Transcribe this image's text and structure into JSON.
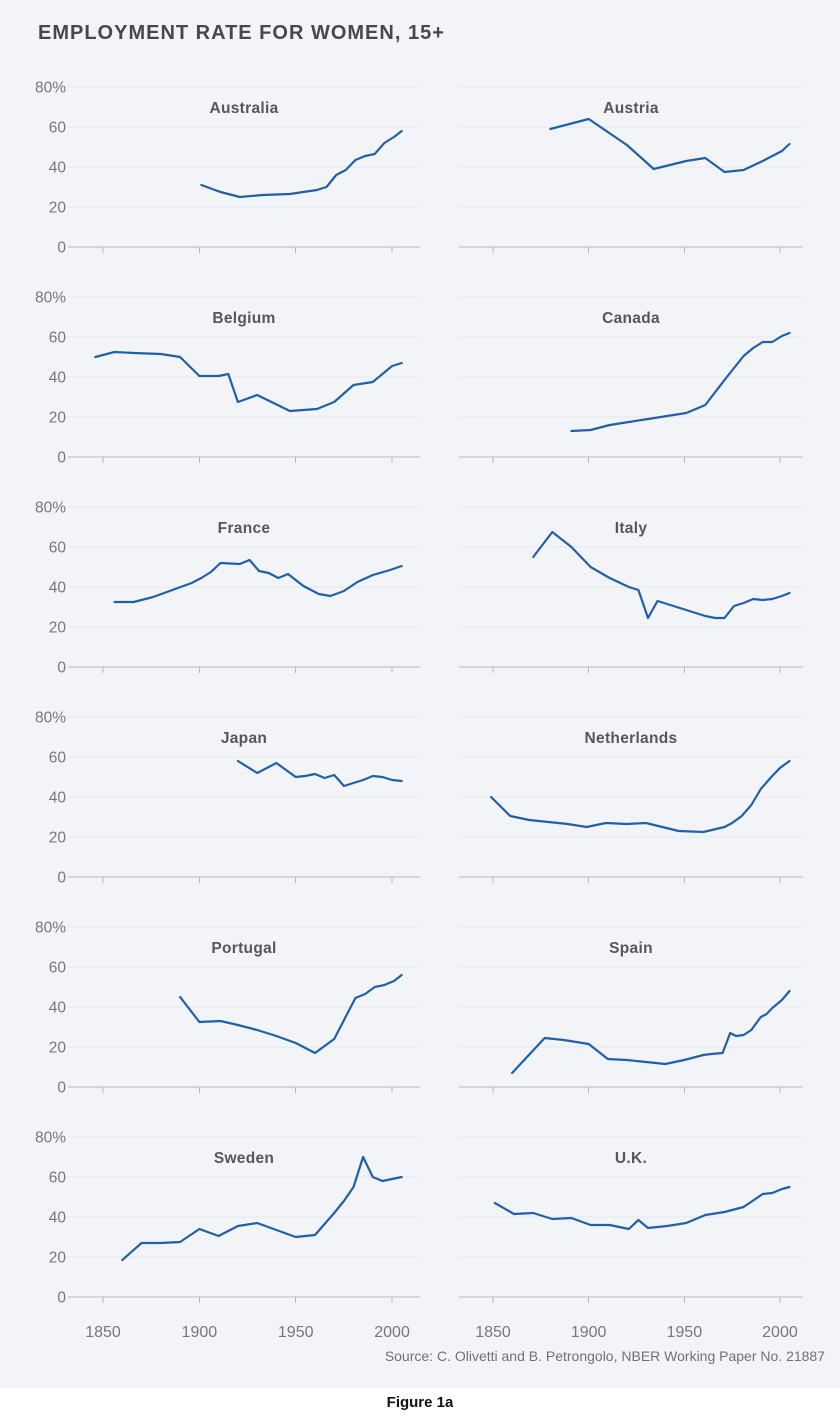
{
  "page": {
    "title": "EMPLOYMENT RATE FOR WOMEN, 15+",
    "source": "Source: C. Olivetti and B. Petrongolo, NBER Working Paper No. 21887",
    "figure_label": "Figure 1a"
  },
  "colors": {
    "background": "#f3f4f8",
    "line": "#2160a8",
    "grid": "#e7e8ee",
    "axis": "#b3b7be",
    "tick_label": "#75787f",
    "country_label": "#54575d",
    "title": "#45484e",
    "source": "#6e7177"
  },
  "axes": {
    "ylim": [
      0,
      80
    ],
    "y_ticks": [
      0,
      20,
      40,
      60,
      80
    ],
    "y_tick_labels": [
      "0",
      "20",
      "40",
      "60",
      "80%"
    ],
    "xlim": [
      1838,
      2012
    ],
    "x_ticks": [
      1850,
      1900,
      1950,
      2000
    ],
    "x_tick_labels": [
      "1850",
      "1900",
      "1950",
      "2000"
    ],
    "grid": "horizontal gridlines at every 20, baseline axis with ticks at x ticks",
    "y_labels_shown_on": "left column only",
    "x_labels_shown_on": "bottom row only"
  },
  "chart_data": [
    {
      "type": "line",
      "title": "Australia",
      "x": [
        1901,
        1911,
        1921,
        1933,
        1947,
        1954,
        1961,
        1966,
        1971,
        1976,
        1981,
        1986,
        1991,
        1996,
        2001,
        2005
      ],
      "y": [
        31,
        27.5,
        25,
        26,
        26.5,
        27.5,
        28.5,
        30,
        36,
        38.5,
        43.5,
        45.5,
        46.5,
        52,
        55,
        58
      ]
    },
    {
      "type": "line",
      "title": "Austria",
      "x": [
        1880,
        1890,
        1900,
        1910,
        1920,
        1934,
        1951,
        1961,
        1971,
        1981,
        1991,
        2001,
        2005
      ],
      "y": [
        59,
        61.5,
        64,
        57.5,
        51,
        39,
        43,
        44.5,
        37.5,
        38.5,
        43,
        48,
        51.5
      ]
    },
    {
      "type": "line",
      "title": "Belgium",
      "x": [
        1846,
        1856,
        1866,
        1880,
        1890,
        1900,
        1910,
        1915,
        1920,
        1930,
        1947,
        1961,
        1970,
        1980,
        1990,
        2000,
        2005
      ],
      "y": [
        50,
        52.5,
        52,
        51.5,
        50,
        40.5,
        40.5,
        41.5,
        27.5,
        31,
        23,
        24,
        27.5,
        36,
        37.5,
        45.5,
        47
      ]
    },
    {
      "type": "line",
      "title": "Canada",
      "x": [
        1891,
        1901,
        1911,
        1921,
        1931,
        1941,
        1951,
        1961,
        1971,
        1981,
        1986,
        1991,
        1996,
        2001,
        2005
      ],
      "y": [
        13,
        13.5,
        16,
        17.5,
        19,
        20.5,
        22,
        26,
        38.5,
        50.5,
        54.5,
        57.5,
        57.5,
        60.5,
        62
      ]
    },
    {
      "type": "line",
      "title": "France",
      "x": [
        1856,
        1866,
        1876,
        1886,
        1896,
        1901,
        1906,
        1911,
        1921,
        1926,
        1931,
        1936,
        1941,
        1946,
        1954,
        1962,
        1968,
        1975,
        1982,
        1990,
        1999,
        2005
      ],
      "y": [
        32.5,
        32.5,
        35,
        38.5,
        42,
        44.5,
        47.5,
        52,
        51.5,
        53.5,
        48,
        47,
        44.5,
        46.5,
        40.5,
        36.5,
        35.5,
        38,
        42.5,
        46,
        48.5,
        50.5
      ]
    },
    {
      "type": "line",
      "title": "Italy",
      "x": [
        1871,
        1881,
        1891,
        1901,
        1911,
        1921,
        1926,
        1931,
        1936,
        1941,
        1951,
        1961,
        1966,
        1971,
        1976,
        1981,
        1986,
        1991,
        1996,
        2001,
        2005
      ],
      "y": [
        55,
        67.5,
        60,
        50,
        44.5,
        40,
        38.5,
        24.5,
        33,
        31.5,
        28.5,
        25.5,
        24.5,
        24.5,
        30.5,
        32,
        34,
        33.5,
        34,
        35.5,
        37
      ]
    },
    {
      "type": "line",
      "title": "Japan",
      "x": [
        1920,
        1930,
        1940,
        1950,
        1955,
        1960,
        1965,
        1970,
        1975,
        1980,
        1985,
        1990,
        1995,
        2000,
        2005
      ],
      "y": [
        58,
        52,
        57,
        50,
        50.5,
        51.5,
        49.5,
        51,
        45.5,
        47,
        48.5,
        50.5,
        50,
        48.5,
        48
      ]
    },
    {
      "type": "line",
      "title": "Netherlands",
      "x": [
        1849,
        1859,
        1869,
        1879,
        1889,
        1899,
        1909,
        1920,
        1930,
        1947,
        1960,
        1971,
        1975,
        1980,
        1985,
        1990,
        1995,
        2000,
        2005
      ],
      "y": [
        40,
        30.5,
        28.5,
        27.5,
        26.5,
        25,
        27,
        26.5,
        27,
        23,
        22.5,
        25,
        27,
        30.5,
        36,
        44,
        49.5,
        54.5,
        58
      ]
    },
    {
      "type": "line",
      "title": "Portugal",
      "x": [
        1890,
        1900,
        1911,
        1920,
        1930,
        1940,
        1950,
        1960,
        1970,
        1981,
        1986,
        1991,
        1996,
        2001,
        2005
      ],
      "y": [
        45,
        32.5,
        33,
        31,
        28.5,
        25.5,
        22,
        17,
        24,
        44.5,
        46.5,
        50,
        51,
        53,
        56
      ]
    },
    {
      "type": "line",
      "title": "Spain",
      "x": [
        1860,
        1877,
        1887,
        1900,
        1910,
        1920,
        1930,
        1940,
        1950,
        1960,
        1964,
        1970,
        1974,
        1977,
        1981,
        1985,
        1990,
        1993,
        1996,
        2001,
        2005
      ],
      "y": [
        7,
        24.5,
        23.5,
        21.5,
        14,
        13.5,
        12.5,
        11.5,
        13.5,
        16,
        16.5,
        17,
        27,
        25.5,
        26,
        28.5,
        35,
        36.5,
        39.5,
        43.5,
        48
      ]
    },
    {
      "type": "line",
      "title": "Sweden",
      "x": [
        1860,
        1870,
        1880,
        1890,
        1900,
        1910,
        1920,
        1930,
        1940,
        1950,
        1960,
        1965,
        1970,
        1975,
        1980,
        1985,
        1990,
        1995,
        2000,
        2005
      ],
      "y": [
        18.5,
        27,
        27,
        27.5,
        34,
        30.5,
        35.5,
        37,
        33.5,
        30,
        31,
        36.5,
        42,
        48,
        55,
        70,
        60,
        58,
        59,
        60
      ]
    },
    {
      "type": "line",
      "title": "U.K.",
      "x": [
        1851,
        1861,
        1871,
        1881,
        1891,
        1901,
        1911,
        1921,
        1926,
        1931,
        1941,
        1951,
        1961,
        1971,
        1981,
        1991,
        1996,
        2001,
        2005
      ],
      "y": [
        47,
        41.5,
        42,
        39,
        39.5,
        36,
        36,
        34,
        38.5,
        34.5,
        35.5,
        37,
        41,
        42.5,
        45,
        51.5,
        52,
        54,
        55
      ]
    }
  ]
}
